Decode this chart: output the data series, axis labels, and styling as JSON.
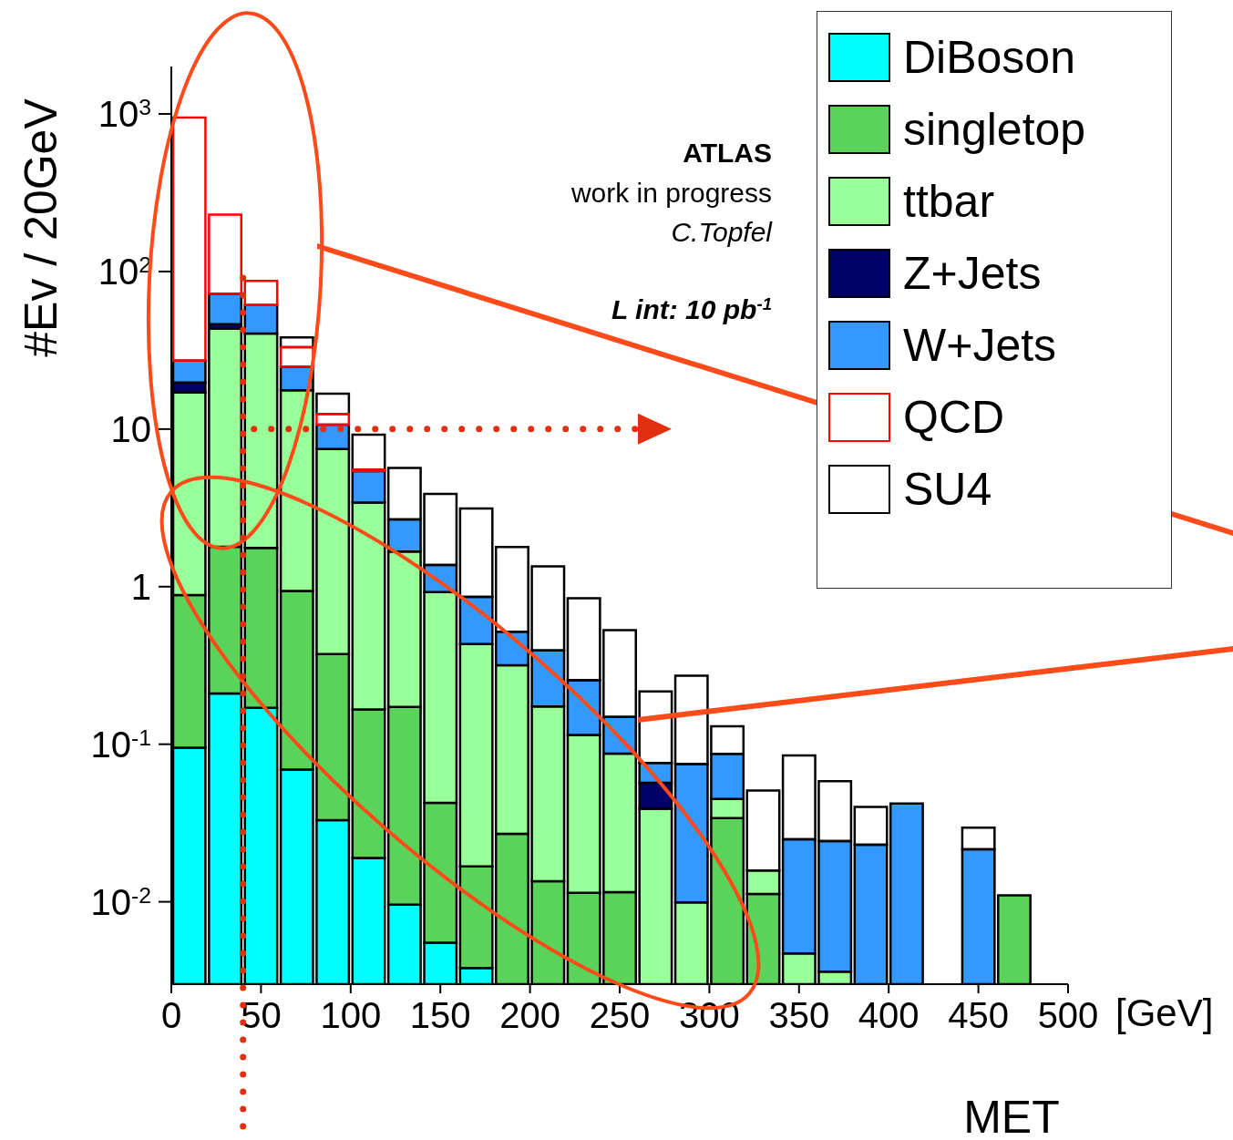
{
  "chart_data": {
    "type": "bar",
    "ylabel": "#Ev / 20GeV",
    "xlabel": "MET",
    "annotations": [
      "ATLAS",
      "work in progress",
      "C.Topfel",
      "L int: 10 pb$^{-1}$",
      "[GeV]"
    ],
    "x": [
      10,
      30,
      50,
      70,
      90,
      110,
      130,
      150,
      170,
      190,
      210,
      230,
      250,
      270,
      290,
      310,
      330,
      350,
      370,
      390,
      410,
      430,
      450,
      470
    ],
    "stacked": true,
    "log": "y",
    "legend": "top right",
    "xlim": [
      0,
      500
    ],
    "xticks": [
      0,
      50,
      100,
      150,
      200,
      250,
      300,
      350,
      400,
      450,
      500
    ],
    "ylim": [
      0.003,
      2000
    ],
    "yticks": [
      {
        "value": 0.01,
        "label": "10$^{-2}$"
      },
      {
        "value": 0.1,
        "label": "10$^{-1}$"
      },
      1,
      10,
      {
        "value": 100,
        "label": "10$^{2}$"
      },
      {
        "value": 1000,
        "label": "10$^{3}$"
      }
    ],
    "ref_lines": [
      {
        "axis": "x",
        "value": 40,
        "line_style": "dotted",
        "color": "#e03010"
      },
      {
        "axis": "y",
        "value": 10,
        "line_style": "dotted",
        "color": "#e03010"
      }
    ],
    "series": [
      {
        "name": "DiBoson",
        "color": "#00ffff",
        "values": [
          0.095,
          0.21,
          0.17,
          0.069,
          0.033,
          0.019,
          0.0096,
          0.0055,
          0.0038,
          null,
          null,
          null,
          null,
          null,
          null,
          null,
          null,
          null,
          null,
          null,
          null,
          null,
          null,
          null
        ]
      },
      {
        "name": "singletop",
        "color": "#5bd35b",
        "values": [
          0.79,
          1.58,
          1.59,
          0.87,
          0.34,
          0.147,
          0.163,
          0.037,
          0.013,
          0.027,
          0.0135,
          0.0114,
          0.0115,
          null,
          null,
          0.034,
          0.0112,
          null,
          null,
          null,
          null,
          null,
          null,
          0.011
        ]
      },
      {
        "name": "ttbar",
        "color": "#99ff99",
        "values": [
          16.2,
          41.5,
          38.7,
          16.7,
          7.1,
          3.25,
          1.5,
          0.88,
          0.415,
          0.29,
          0.16,
          0.103,
          0.0756,
          0.039,
          0.0099,
          0.011,
          0.0046,
          0.0047,
          0.0036,
          null,
          null,
          null,
          null,
          null
        ]
      },
      {
        "name": "Z+Jets",
        "color": "#000066",
        "values": [
          2.7,
          3.1,
          null,
          null,
          null,
          null,
          null,
          null,
          null,
          null,
          null,
          null,
          null,
          0.018,
          null,
          null,
          null,
          null,
          null,
          null,
          null,
          null,
          null,
          null
        ]
      },
      {
        "name": "W+Jets",
        "color": "#3399ff",
        "values": [
          7.4,
          25.7,
          20.9,
          7.2,
          3.2,
          2.0,
          1.0,
          0.45,
          0.43,
          0.2,
          0.22,
          0.14,
          0.062,
          0.019,
          0.065,
          0.042,
          null,
          0.0202,
          0.0207,
          0.023,
          0.042,
          null,
          0.0215,
          null
        ]
      },
      {
        "name": "QCD",
        "line_style": "solid",
        "color": "#ff0000",
        "values": [
          921,
          158,
          25.9,
          8.3,
          1.8,
          0.1,
          null,
          null,
          null,
          null,
          null,
          null,
          null,
          null,
          null,
          null,
          null,
          null,
          null,
          null,
          null,
          null,
          null,
          null
        ]
      },
      {
        "name": "SU4",
        "line_style": "solid",
        "color": "#000000",
        "values": [
          null,
          null,
          null,
          5.0,
          4.3,
          3.7,
          3.0,
          2.5,
          2.27,
          1.27,
          0.95,
          0.59,
          0.38,
          0.14,
          0.197,
          0.043,
          0.035,
          0.06,
          0.034,
          0.017,
          null,
          null,
          0.008,
          null
        ]
      }
    ]
  }
}
